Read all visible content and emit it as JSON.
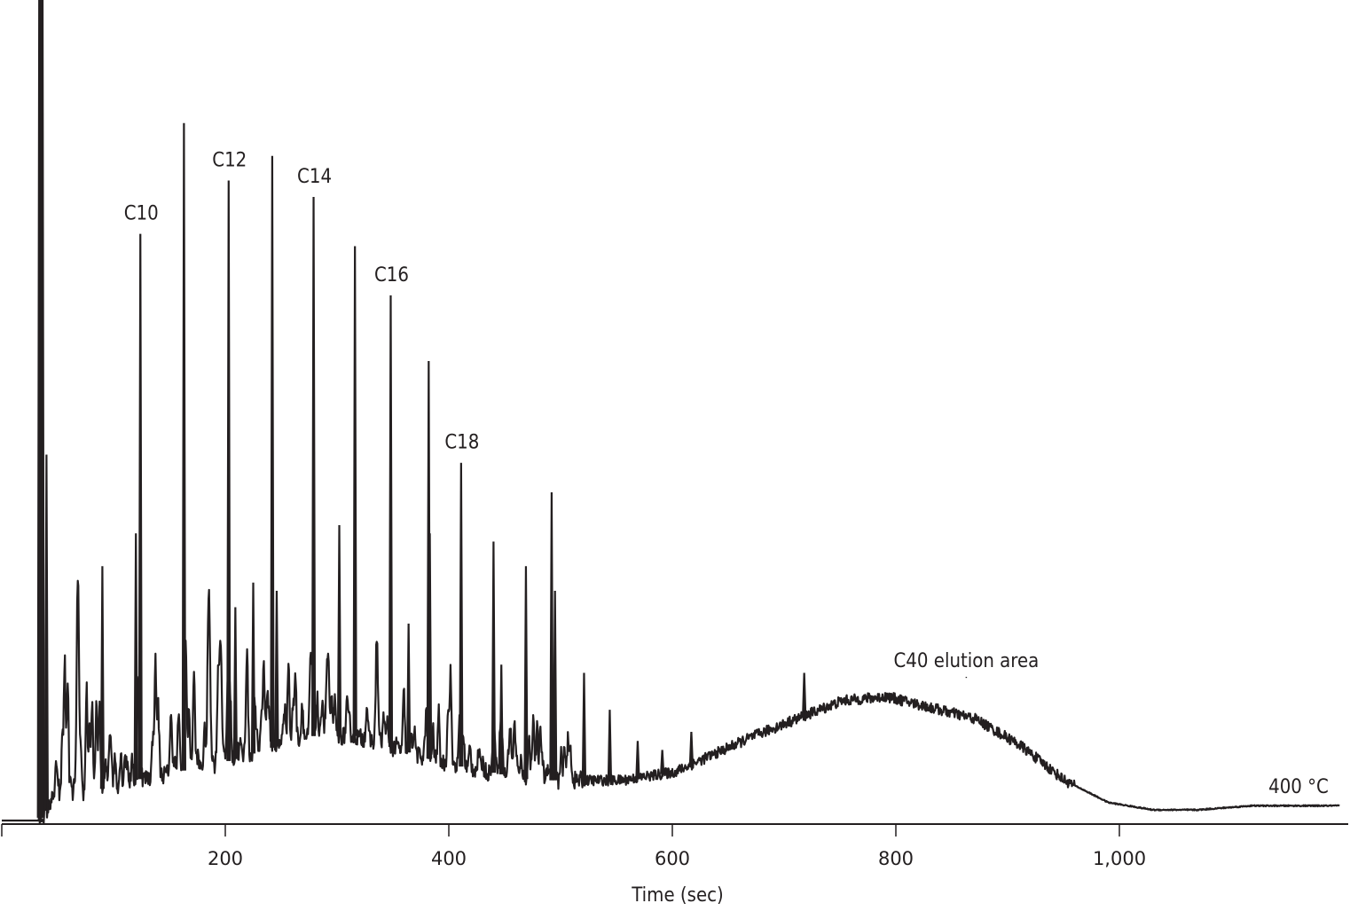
{
  "chart_data": {
    "type": "line",
    "title": "",
    "xlabel": "Time (sec)",
    "ylabel": "",
    "xlim": [
      0,
      1205
    ],
    "ylim": [
      0,
      100
    ],
    "x_ticks": [
      0,
      200,
      400,
      600,
      800,
      1000
    ],
    "x_tick_labels": [
      "",
      "200",
      "400",
      "600",
      "800",
      "1,000"
    ],
    "grid": false,
    "legend": "none",
    "line_color": "#231f20",
    "baseline": {
      "x": [
        0,
        33,
        46,
        118,
        197,
        276,
        316,
        395,
        475,
        554,
        602,
        673,
        752,
        792,
        871,
        911,
        951,
        990,
        1030,
        1070,
        1118,
        1197
      ],
      "y": [
        0,
        0,
        2.2,
        4.9,
        7.0,
        10.3,
        10.3,
        7.0,
        4.9,
        4.9,
        5.9,
        10.3,
        14.6,
        15.1,
        12.4,
        9.2,
        4.9,
        2.2,
        1.3,
        1.3,
        1.8,
        1.8
      ]
    },
    "peaks": [
      {
        "x": 35,
        "y": 100
      },
      {
        "x": 40,
        "y": 44.6
      },
      {
        "x": 90,
        "y": 31
      },
      {
        "x": 120,
        "y": 35
      },
      {
        "x": 124,
        "y": 71.5,
        "label": "C10"
      },
      {
        "x": 163,
        "y": 85
      },
      {
        "x": 203,
        "y": 78,
        "label": "C12"
      },
      {
        "x": 209,
        "y": 26
      },
      {
        "x": 225,
        "y": 29
      },
      {
        "x": 242,
        "y": 81
      },
      {
        "x": 246,
        "y": 28
      },
      {
        "x": 279,
        "y": 76,
        "label": "C14"
      },
      {
        "x": 302,
        "y": 36
      },
      {
        "x": 316,
        "y": 70
      },
      {
        "x": 348,
        "y": 64,
        "label": "C16"
      },
      {
        "x": 364,
        "y": 24
      },
      {
        "x": 382,
        "y": 56
      },
      {
        "x": 383,
        "y": 35
      },
      {
        "x": 411,
        "y": 43.6,
        "label": "C18"
      },
      {
        "x": 440,
        "y": 34
      },
      {
        "x": 447,
        "y": 19
      },
      {
        "x": 469,
        "y": 31
      },
      {
        "x": 492,
        "y": 40
      },
      {
        "x": 495,
        "y": 28
      },
      {
        "x": 521,
        "y": 18
      },
      {
        "x": 544,
        "y": 13.5
      },
      {
        "x": 569,
        "y": 9.7
      },
      {
        "x": 591,
        "y": 8.6
      },
      {
        "x": 617,
        "y": 10.8
      },
      {
        "x": 718,
        "y": 18
      }
    ],
    "annotations": [
      {
        "text": "C40 elution area",
        "x": 863,
        "y": 17.6
      },
      {
        "text": "400 °C",
        "x": 1150,
        "y": 1.8
      }
    ]
  }
}
